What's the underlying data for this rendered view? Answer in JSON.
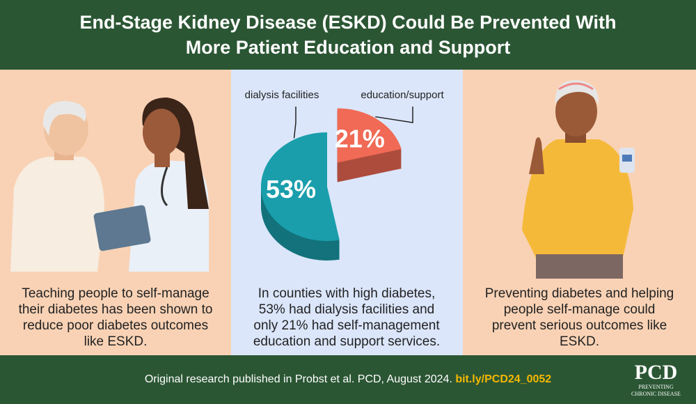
{
  "header": {
    "title": "End-Stage Kidney Disease (ESKD) Could Be Prevented With More Patient Education and Support"
  },
  "panels": [
    {
      "text": "Teaching people to self-manage their diabetes has been shown to reduce poor diabetes outcomes like ESKD."
    },
    {
      "text": "In counties with high diabetes, 53% had dialysis facilities and only 21% had self-management education and support services."
    },
    {
      "text": "Preventing diabetes and helping people self-manage could prevent serious outcomes like ESKD."
    }
  ],
  "chart_data": {
    "type": "pie",
    "categories": [
      "dialysis facilities",
      "education/support"
    ],
    "values": [
      53,
      21
    ],
    "value_labels": [
      "53%",
      "21%"
    ],
    "colors": [
      "#1a9eab",
      "#f06a55"
    ]
  },
  "footer": {
    "text": "Original research published in Probst et al. PCD, August 2024.",
    "link": "bit.ly/PCD24_0052",
    "logo": {
      "title": "PCD",
      "line_1": "PREVENTING",
      "line_2": "CHRONIC DISEASE"
    }
  }
}
